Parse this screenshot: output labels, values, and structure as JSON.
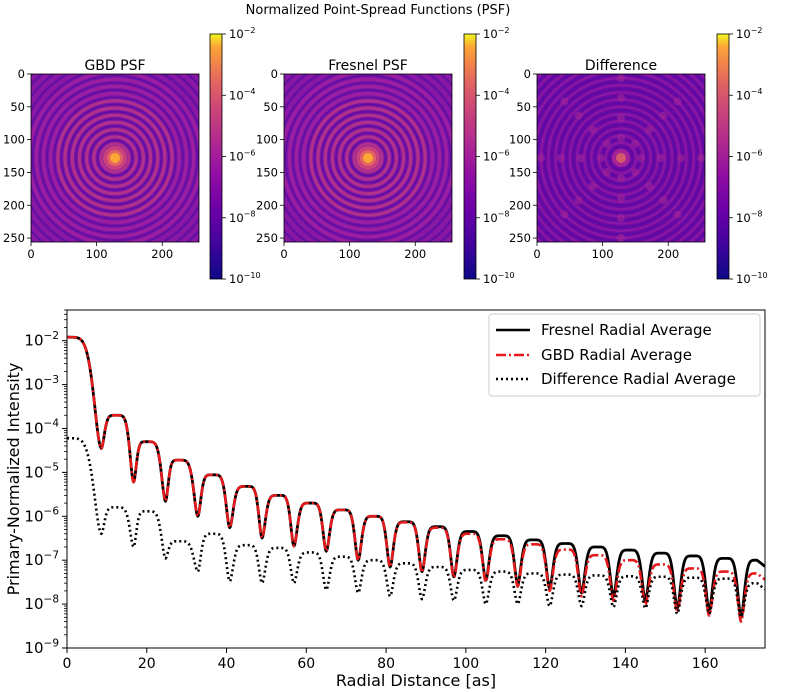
{
  "suptitle": "Normalized Point-Spread Functions (PSF)",
  "panels": [
    {
      "title": "GBD PSF",
      "kind": "psf"
    },
    {
      "title": "Fresnel PSF",
      "kind": "psf"
    },
    {
      "title": "Difference",
      "kind": "diff"
    }
  ],
  "image_axes": {
    "y_ticks": [
      "0",
      "50",
      "100",
      "150",
      "200",
      "250"
    ],
    "x_ticks": [
      "0",
      "100",
      "200"
    ]
  },
  "colorbar": {
    "colormap": "plasma",
    "ticks": [
      "10^-2",
      "10^-4",
      "10^-6",
      "10^-8",
      "10^-10"
    ]
  },
  "chart_data": [
    {
      "type": "heatmap",
      "title": "GBD PSF",
      "colormap": "plasma",
      "scale": "log",
      "color_range": [
        1e-10,
        0.01
      ],
      "grid_size": [
        256,
        256
      ],
      "center_value": 0.012
    },
    {
      "type": "heatmap",
      "title": "Fresnel PSF",
      "colormap": "plasma",
      "scale": "log",
      "color_range": [
        1e-10,
        0.01
      ],
      "grid_size": [
        256,
        256
      ],
      "center_value": 0.012
    },
    {
      "type": "heatmap",
      "title": "Difference",
      "colormap": "plasma",
      "scale": "log",
      "color_range": [
        1e-10,
        0.01
      ],
      "grid_size": [
        256,
        256
      ],
      "center_value": 6e-05
    },
    {
      "type": "line",
      "title": "",
      "xlabel": "Radial Distance [as]",
      "ylabel": "Primary-Normalized Intensity",
      "xlim": [
        0,
        175
      ],
      "ylim": [
        1e-09,
        0.05
      ],
      "yscale": "log",
      "x_ticks": [
        "0",
        "20",
        "40",
        "60",
        "80",
        "100",
        "120",
        "140",
        "160"
      ],
      "y_ticks": [
        "10^-9",
        "10^-8",
        "10^-7",
        "10^-6",
        "10^-5",
        "10^-4",
        "10^-3",
        "10^-2"
      ],
      "legend_position": "top-right",
      "series": [
        {
          "name": "Fresnel Radial Average",
          "color": "#000000",
          "style": "solid",
          "peaks": [
            [
              0,
              0.012
            ],
            [
              12.3,
              0.0002
            ],
            [
              20,
              5e-05
            ],
            [
              28,
              1.9e-05
            ],
            [
              36.5,
              8.8e-06
            ],
            [
              45,
              4.8e-06
            ],
            [
              53,
              3e-06
            ],
            [
              61,
              2e-06
            ],
            [
              69,
              1.4e-06
            ],
            [
              77,
              1e-06
            ],
            [
              85,
              7.5e-07
            ],
            [
              93,
              5.8e-07
            ],
            [
              101,
              4.5e-07
            ],
            [
              109,
              3.6e-07
            ],
            [
              117,
              2.9e-07
            ],
            [
              125,
              2.4e-07
            ],
            [
              133,
              2e-07
            ],
            [
              141,
              1.7e-07
            ],
            [
              149,
              1.45e-07
            ],
            [
              157,
              1.25e-07
            ],
            [
              165,
              1.1e-07
            ],
            [
              173,
              1e-07
            ]
          ],
          "minima": [
            [
              8.6,
              3.5e-05
            ],
            [
              16.7,
              6e-06
            ],
            [
              24.7,
              2.2e-06
            ],
            [
              32.8,
              1e-06
            ],
            [
              40.8,
              5.5e-07
            ],
            [
              48.9,
              3.2e-07
            ],
            [
              56.9,
              2.1e-07
            ],
            [
              65,
              1.6e-07
            ],
            [
              73,
              1e-07
            ],
            [
              81,
              7e-08
            ],
            [
              89,
              5.5e-08
            ],
            [
              97,
              4.2e-08
            ],
            [
              105,
              3.5e-08
            ],
            [
              113,
              2.8e-08
            ],
            [
              121,
              2.3e-08
            ],
            [
              129,
              1.8e-08
            ],
            [
              137,
              1.5e-08
            ],
            [
              145,
              1.2e-08
            ],
            [
              153,
              8e-09
            ],
            [
              161,
              7e-09
            ],
            [
              169,
              5e-09
            ]
          ]
        },
        {
          "name": "GBD Radial Average",
          "color": "#e41a1c",
          "style": "dash-dot",
          "peaks": [
            [
              0,
              0.012
            ],
            [
              12.3,
              0.0002
            ],
            [
              20,
              5e-05
            ],
            [
              28,
              1.9e-05
            ],
            [
              36.5,
              8.8e-06
            ],
            [
              45,
              4.8e-06
            ],
            [
              53,
              3e-06
            ],
            [
              61,
              2e-06
            ],
            [
              69,
              1.4e-06
            ],
            [
              77,
              1e-06
            ],
            [
              85,
              7.3e-07
            ],
            [
              93,
              5.5e-07
            ],
            [
              101,
              4e-07
            ],
            [
              109,
              3e-07
            ],
            [
              117,
              2.3e-07
            ],
            [
              125,
              1.75e-07
            ],
            [
              133,
              1.3e-07
            ],
            [
              141,
              1e-07
            ],
            [
              149,
              8e-08
            ],
            [
              157,
              6.5e-08
            ],
            [
              165,
              5.5e-08
            ],
            [
              173,
              5e-08
            ]
          ],
          "minima": [
            [
              8.6,
              3.5e-05
            ],
            [
              16.7,
              6e-06
            ],
            [
              24.7,
              2.2e-06
            ],
            [
              32.8,
              1e-06
            ],
            [
              40.8,
              5.5e-07
            ],
            [
              48.9,
              3.2e-07
            ],
            [
              56.9,
              2.1e-07
            ],
            [
              65,
              1.6e-07
            ],
            [
              73,
              1e-07
            ],
            [
              81,
              7e-08
            ],
            [
              89,
              5.3e-08
            ],
            [
              97,
              4e-08
            ],
            [
              105,
              3.2e-08
            ],
            [
              113,
              2.5e-08
            ],
            [
              121,
              2e-08
            ],
            [
              129,
              1.5e-08
            ],
            [
              137,
              1.2e-08
            ],
            [
              145,
              9.5e-09
            ],
            [
              153,
              6.5e-09
            ],
            [
              161,
              5.5e-09
            ],
            [
              169,
              4e-09
            ]
          ]
        },
        {
          "name": "Difference Radial Average",
          "color": "#000000",
          "style": "dotted",
          "peaks": [
            [
              0,
              6e-05
            ],
            [
              12.3,
              1.6e-06
            ],
            [
              20,
              1.3e-06
            ],
            [
              28,
              2.7e-07
            ],
            [
              36.5,
              4e-07
            ],
            [
              45,
              2.2e-07
            ],
            [
              53,
              1.9e-07
            ],
            [
              61,
              1.5e-07
            ],
            [
              69,
              1.2e-07
            ],
            [
              77,
              1e-07
            ],
            [
              85,
              8.5e-08
            ],
            [
              93,
              7e-08
            ],
            [
              101,
              6e-08
            ],
            [
              109,
              5.5e-08
            ],
            [
              117,
              5e-08
            ],
            [
              125,
              4.7e-08
            ],
            [
              133,
              4.5e-08
            ],
            [
              141,
              4.3e-08
            ],
            [
              149,
              4.2e-08
            ],
            [
              157,
              4e-08
            ],
            [
              165,
              3.8e-08
            ],
            [
              173,
              3e-08
            ]
          ],
          "minima": [
            [
              8.6,
              4e-07
            ],
            [
              16.7,
              2e-07
            ],
            [
              24.7,
              1.1e-07
            ],
            [
              32.8,
              5.5e-08
            ],
            [
              40.8,
              3.3e-08
            ],
            [
              48.9,
              3e-08
            ],
            [
              56.9,
              3e-08
            ],
            [
              65,
              2.1e-08
            ],
            [
              73,
              1.8e-08
            ],
            [
              81,
              1.5e-08
            ],
            [
              89,
              1.3e-08
            ],
            [
              97,
              1.2e-08
            ],
            [
              105,
              1e-08
            ],
            [
              113,
              1e-08
            ],
            [
              121,
              9e-09
            ],
            [
              129,
              9e-09
            ],
            [
              137,
              8.5e-09
            ],
            [
              145,
              8e-09
            ],
            [
              153,
              6e-09
            ],
            [
              161,
              6e-09
            ],
            [
              169,
              5e-09
            ]
          ]
        }
      ]
    }
  ]
}
